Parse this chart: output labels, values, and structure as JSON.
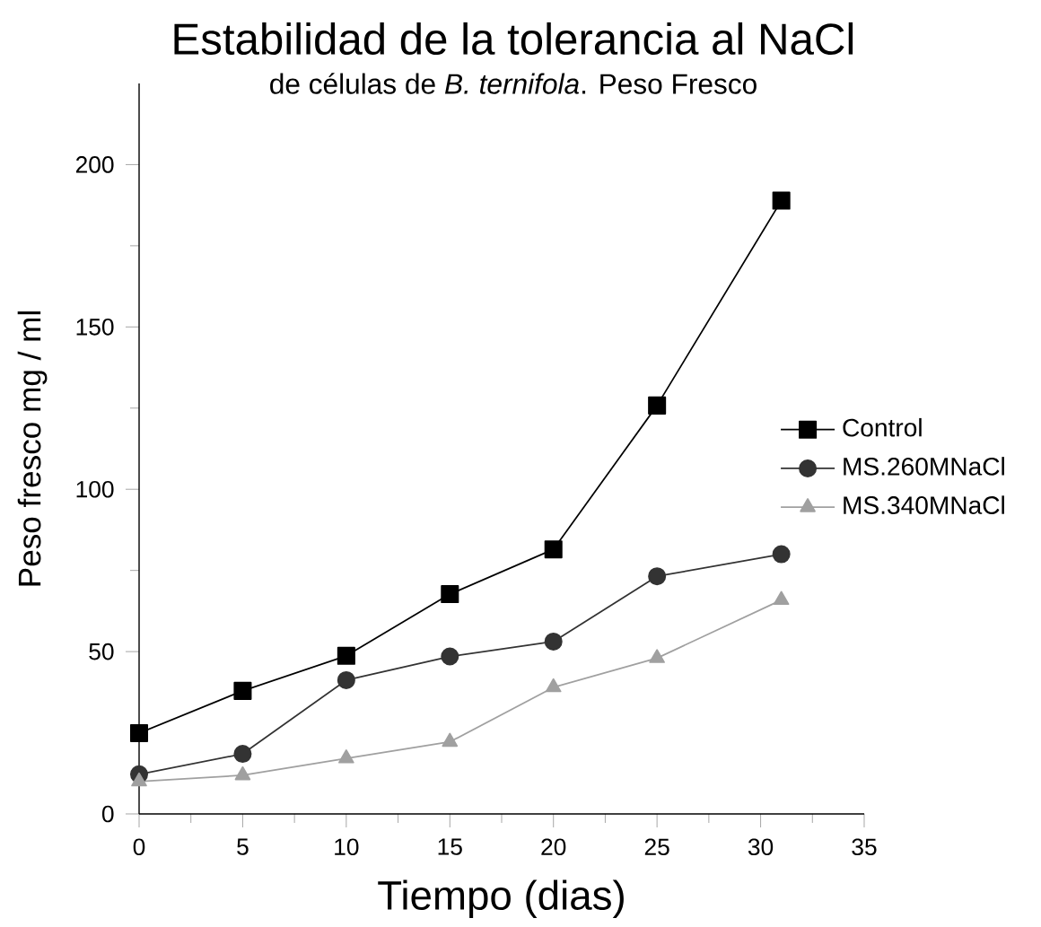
{
  "chart_data": {
    "type": "line",
    "title": "Estabilidad de la tolerancia al NaCl",
    "subtitle": "de células de *B. ternifola*. Peso Fresco",
    "xlabel": "Tiempo (dias)",
    "ylabel": "Peso  fresco mg / ml",
    "x": [
      0,
      5,
      10,
      15,
      20,
      25,
      31
    ],
    "series": [
      {
        "name": "Control",
        "color": "#000000",
        "marker": "square",
        "values": [
          24.9,
          37.9,
          48.7,
          67.7,
          81.5,
          125.8,
          188.9
        ]
      },
      {
        "name": "MS.260MNaCl",
        "color": "#333333",
        "marker": "circle",
        "values": [
          12.2,
          18.5,
          41.2,
          48.5,
          53.1,
          73.2,
          80.0
        ]
      },
      {
        "name": "MS.340MNaCl",
        "color": "#a0a0a0",
        "marker": "triangle",
        "values": [
          10.0,
          11.9,
          17.1,
          22.2,
          39.0,
          48.0,
          65.9
        ]
      }
    ],
    "xlim": [
      0,
      35
    ],
    "ylim": [
      0,
      225
    ],
    "xticks": [
      0,
      5,
      10,
      15,
      20,
      25,
      30,
      35
    ],
    "yticks": [
      0,
      50,
      100,
      150,
      200
    ],
    "grid": false,
    "legend": "right",
    "line_style": "solid"
  }
}
